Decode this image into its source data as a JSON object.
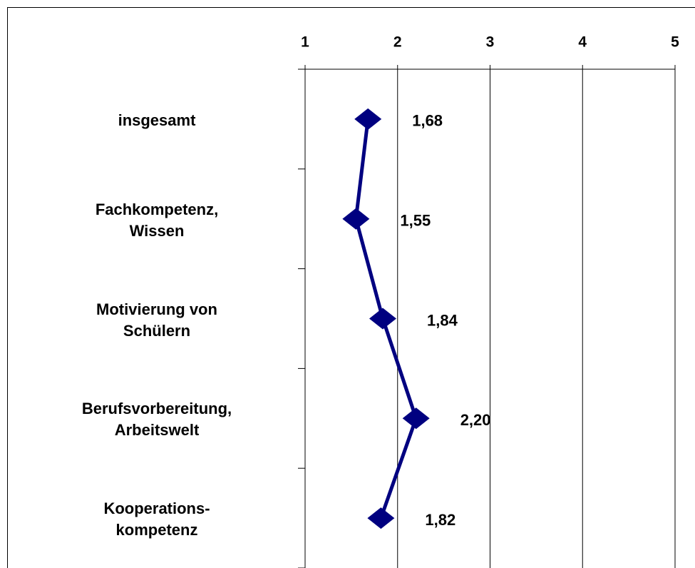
{
  "chart_data": {
    "type": "line",
    "categories": [
      "insgesamt",
      "Fachkompetenz,\nWissen",
      "Motivierung von\nSchülern",
      "Berufsvorbereitung,\nArbeitswelt",
      "Kooperations-\nkompetenz"
    ],
    "values": [
      1.68,
      1.55,
      1.84,
      2.2,
      1.82
    ],
    "value_labels": [
      "1,68",
      "1,55",
      "1,84",
      "2,20",
      "1,82"
    ],
    "color": "#000080",
    "xlim": [
      1,
      5
    ],
    "xticks": [
      1,
      2,
      3,
      4,
      5
    ],
    "grid": true
  }
}
